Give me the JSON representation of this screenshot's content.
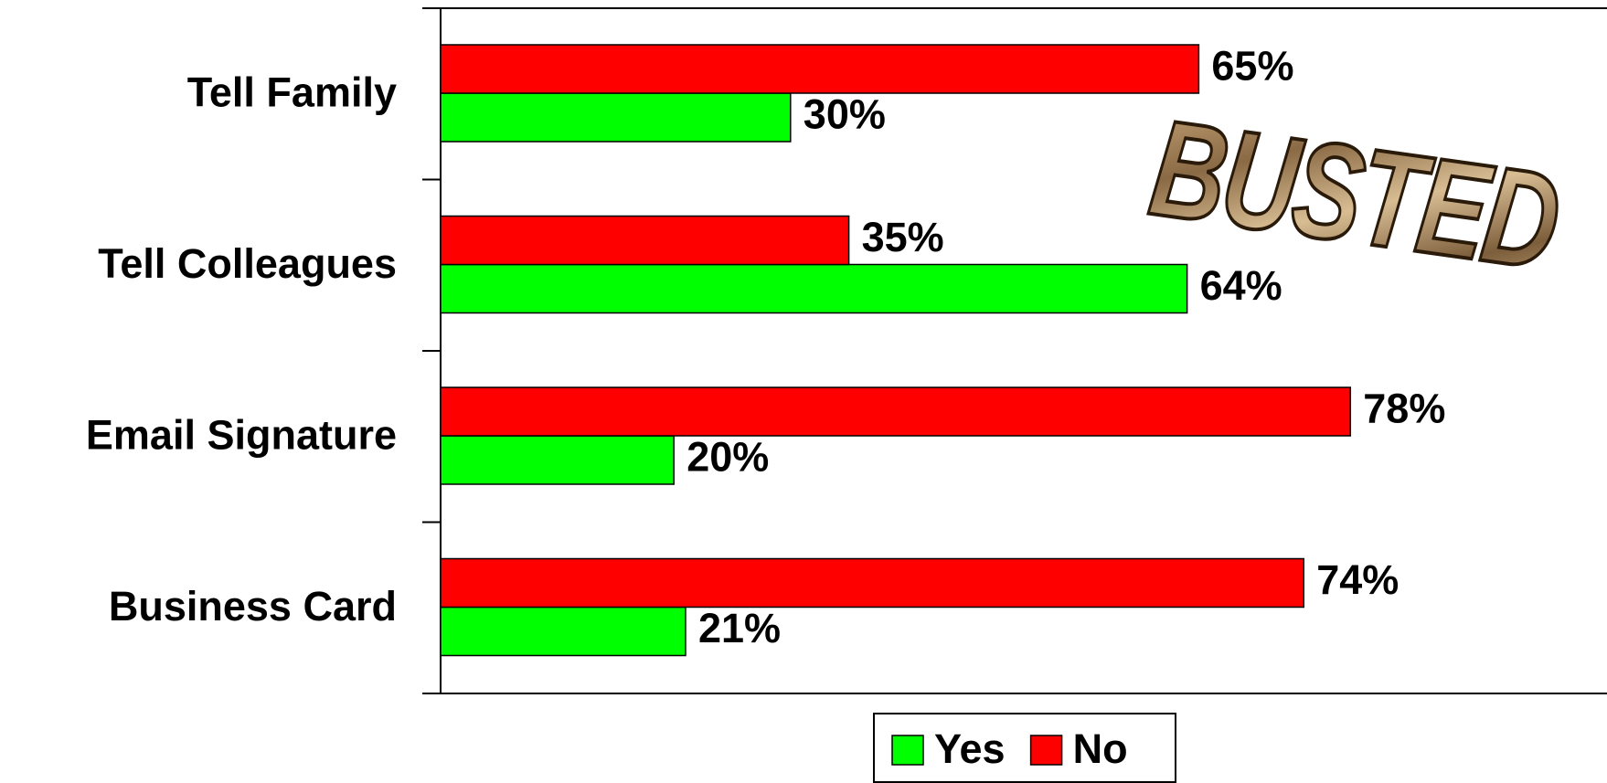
{
  "chart_data": {
    "type": "bar",
    "orientation": "horizontal",
    "categories": [
      "Tell Family",
      "Tell Colleagues",
      "Email Signature",
      "Business Card"
    ],
    "series": [
      {
        "name": "Yes",
        "color": "#00ff00",
        "values": [
          30,
          64,
          20,
          21
        ],
        "value_labels": [
          "30%",
          "64%",
          "20%",
          "21%"
        ]
      },
      {
        "name": "No",
        "color": "#ff0000",
        "values": [
          65,
          35,
          78,
          74
        ],
        "value_labels": [
          "65%",
          "35%",
          "78%",
          "74%"
        ]
      }
    ],
    "xlim": [
      0,
      100
    ],
    "annotation": "BUSTED",
    "legend": "bottom"
  }
}
